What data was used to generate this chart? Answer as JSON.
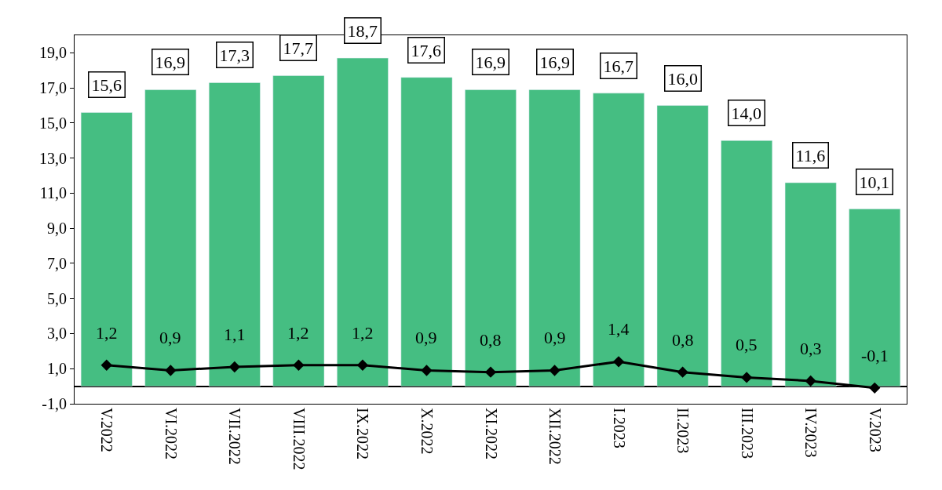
{
  "chart_data": {
    "type": "bar",
    "categories": [
      "V.2022",
      "VI.2022",
      "VII.2022",
      "VIII.2022",
      "IX.2022",
      "X.2022",
      "XI.2022",
      "XII.2022",
      "I.2023",
      "II.2023",
      "III.2023",
      "IV.2023",
      "V.2023"
    ],
    "series": [
      {
        "color": "#45be82",
        "values": [
          15.6,
          16.9,
          17.3,
          17.7,
          18.7,
          17.6,
          16.9,
          16.9,
          16.7,
          16.0,
          14.0,
          11.6,
          10.1
        ],
        "value_labels": [
          "15,6",
          "16,9",
          "17,3",
          "17,7",
          "18,7",
          "17,6",
          "16,9",
          "16,9",
          "16,7",
          "16,0",
          "14,0",
          "11,6",
          "10,1"
        ]
      },
      {
        "type": "line",
        "color": "#000000",
        "marker": "diamond",
        "values": [
          1.2,
          0.9,
          1.1,
          1.2,
          1.2,
          0.9,
          0.8,
          0.9,
          1.4,
          0.8,
          0.5,
          0.3,
          -0.1
        ],
        "value_labels": [
          "1,2",
          "0,9",
          "1,1",
          "1,2",
          "1,2",
          "0,9",
          "0,8",
          "0,9",
          "1,4",
          "0,8",
          "0,5",
          "0,3",
          "-0,1"
        ]
      }
    ],
    "ylim": [
      -1,
      20
    ],
    "yticks": [
      {
        "value": -1,
        "label": "-1,0"
      },
      {
        "value": 1,
        "label": "1,0"
      },
      {
        "value": 3,
        "label": "3,0"
      },
      {
        "value": 5,
        "label": "5,0"
      },
      {
        "value": 7,
        "label": "7,0"
      },
      {
        "value": 9,
        "label": "9,0"
      },
      {
        "value": 11,
        "label": "11,0"
      },
      {
        "value": 13,
        "label": "13,0"
      },
      {
        "value": 15,
        "label": "15,0"
      },
      {
        "value": 17,
        "label": "17,0"
      },
      {
        "value": 19,
        "label": "19,0"
      }
    ]
  }
}
